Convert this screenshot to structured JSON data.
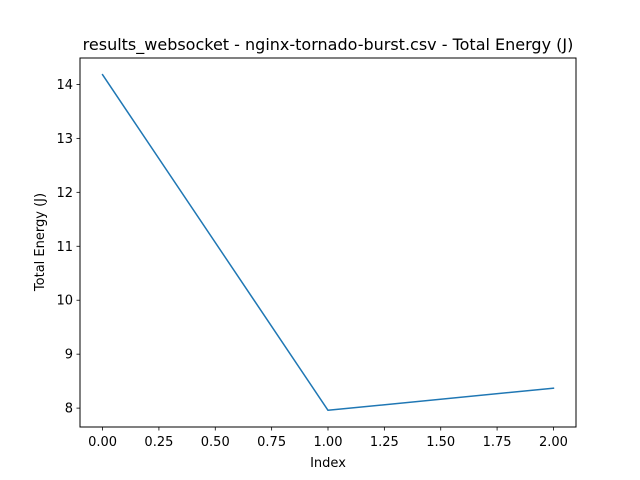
{
  "chart_data": {
    "type": "line",
    "title": "results_websocket - nginx-tornado-burst.csv - Total Energy (J)",
    "xlabel": "Index",
    "ylabel": "Total Energy (J)",
    "x": [
      0,
      1,
      2
    ],
    "series": [
      {
        "values": [
          14.18,
          7.96,
          8.37
        ]
      }
    ],
    "xlim": [
      -0.1,
      2.1
    ],
    "ylim": [
      7.65,
      14.49
    ],
    "x_ticks": [
      "0.00",
      "0.25",
      "0.50",
      "0.75",
      "1.00",
      "1.25",
      "1.50",
      "1.75",
      "2.00"
    ],
    "y_ticks": [
      "8",
      "9",
      "10",
      "11",
      "12",
      "13",
      "14"
    ],
    "grid": false,
    "line_color": "#1f77b4"
  }
}
